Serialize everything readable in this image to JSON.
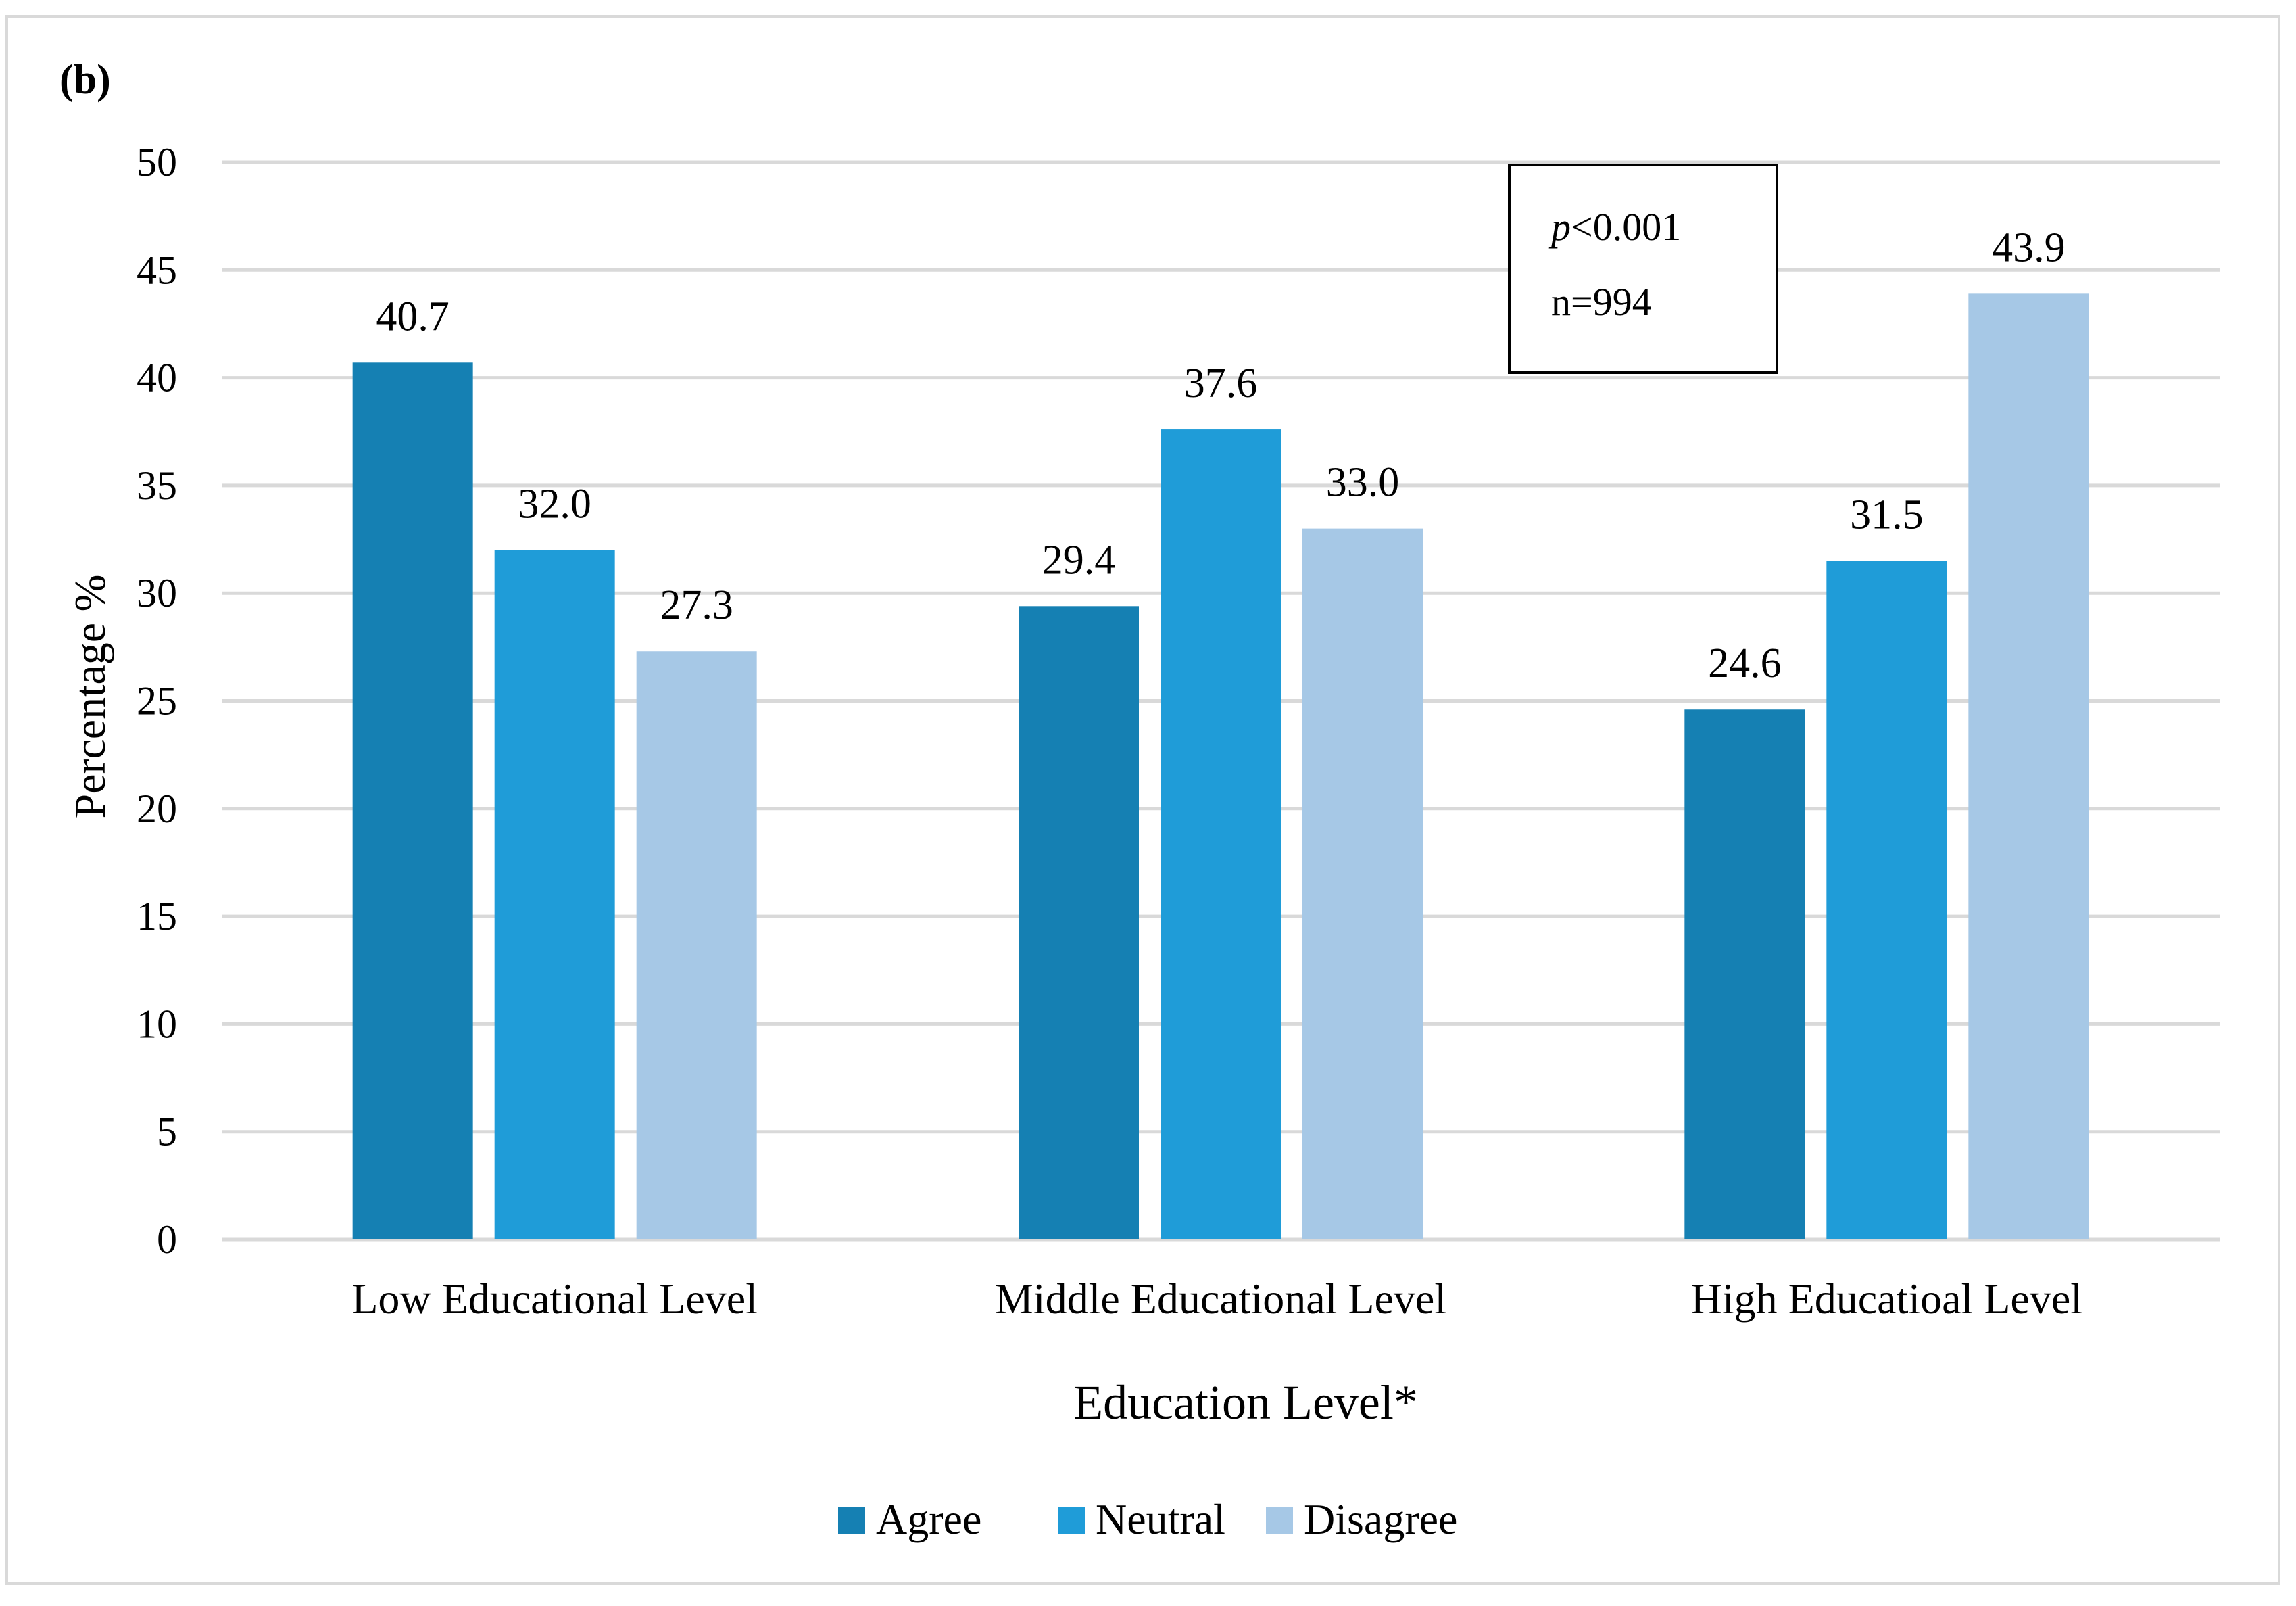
{
  "chart_data": {
    "type": "bar",
    "panel_label": "b",
    "title": "",
    "xlabel": "Education Level*",
    "ylabel": "Percentage %",
    "ylim": [
      0,
      50
    ],
    "yticks": [
      0,
      5,
      10,
      15,
      20,
      25,
      30,
      35,
      40,
      45,
      50
    ],
    "grid": true,
    "legend_position": "bottom",
    "categories": [
      "Low Educational Level",
      "Middle Educational Level",
      "High Educatioal Level"
    ],
    "series": [
      {
        "name": "Agree",
        "color": "#1580b3",
        "values": [
          40.7,
          29.4,
          24.6
        ],
        "labels": [
          "40.7",
          "29.4",
          "24.6"
        ]
      },
      {
        "name": "Neutral",
        "color": "#1f9cd8",
        "values": [
          32.0,
          37.6,
          31.5
        ],
        "labels": [
          "32.0",
          "37.6",
          "31.5"
        ]
      },
      {
        "name": "Disagree",
        "color": "#a6c8e6",
        "values": [
          27.3,
          33.0,
          43.9
        ],
        "labels": [
          "27.3",
          "33.0",
          "43.9"
        ]
      }
    ],
    "annotation": {
      "p_symbol": "p",
      "p_rest": "<0.001",
      "n": "n=994"
    }
  }
}
